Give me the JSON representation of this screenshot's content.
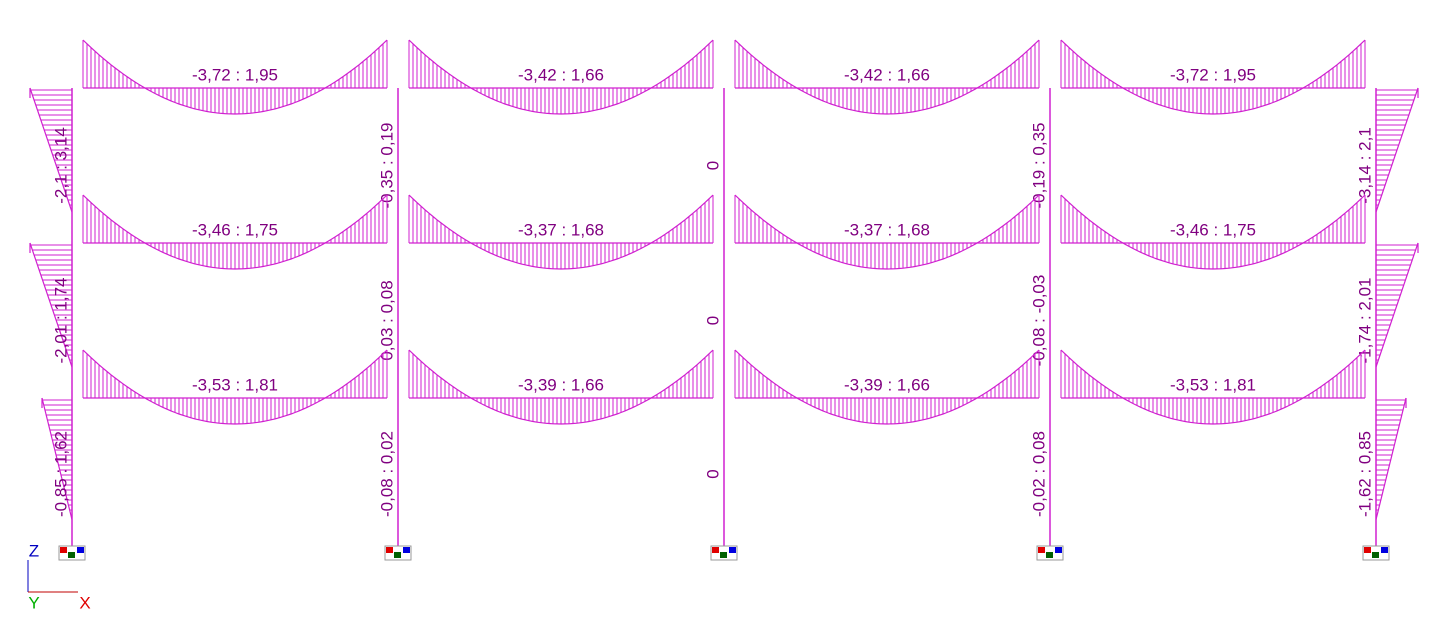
{
  "beams": [
    [
      "-3,72 : 1,95",
      "-3,42 : 1,66",
      "-3,42 : 1,66",
      "-3,72 : 1,95"
    ],
    [
      "-3,46 : 1,75",
      "-3,37 : 1,68",
      "-3,37 : 1,68",
      "-3,46 : 1,75"
    ],
    [
      "-3,53 : 1,81",
      "-3,39 : 1,66",
      "-3,39 : 1,66",
      "-3,53 : 1,81"
    ]
  ],
  "columns": [
    [
      "-2,1 : 3,14",
      "-2,01 : 1,74",
      "-0,85 : 1,62"
    ],
    [
      "-0,35 : 0,19",
      "0,03 : 0,08",
      "-0,08 : 0,02"
    ],
    [
      "0",
      "0",
      "0"
    ],
    [
      "-0,19 : 0,35",
      "-0,08 : -0,03",
      "-0,02 : 0,08"
    ],
    [
      "-3,14 : 2,1",
      "-1,74 : 2,01",
      "-1,62 : 0,85"
    ]
  ],
  "axes": {
    "z": "Z",
    "y": "Y",
    "x": "X"
  }
}
